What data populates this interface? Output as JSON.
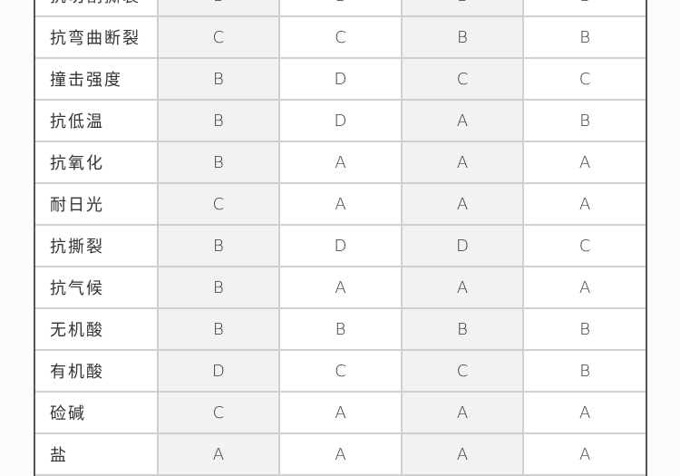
{
  "table": {
    "rows": [
      {
        "label": "抗切割撕裂",
        "values": [
          "B",
          "B",
          "B",
          "B"
        ]
      },
      {
        "label": "抗弯曲断裂",
        "values": [
          "C",
          "C",
          "B",
          "B"
        ]
      },
      {
        "label": "撞击强度",
        "values": [
          "B",
          "D",
          "C",
          "C"
        ]
      },
      {
        "label": "抗低温",
        "values": [
          "B",
          "D",
          "A",
          "B"
        ]
      },
      {
        "label": "抗氧化",
        "values": [
          "B",
          "A",
          "A",
          "A"
        ]
      },
      {
        "label": "耐日光",
        "values": [
          "C",
          "A",
          "A",
          "A"
        ]
      },
      {
        "label": "抗撕裂",
        "values": [
          "B",
          "D",
          "D",
          "C"
        ]
      },
      {
        "label": "抗气候",
        "values": [
          "B",
          "A",
          "A",
          "A"
        ]
      },
      {
        "label": "无机酸",
        "values": [
          "B",
          "B",
          "B",
          "B"
        ]
      },
      {
        "label": "有机酸",
        "values": [
          "D",
          "C",
          "C",
          "B"
        ]
      },
      {
        "label": "硷碱",
        "values": [
          "C",
          "A",
          "A",
          "A"
        ]
      },
      {
        "label": "盐",
        "values": [
          "A",
          "A",
          "A",
          "A"
        ]
      }
    ]
  }
}
